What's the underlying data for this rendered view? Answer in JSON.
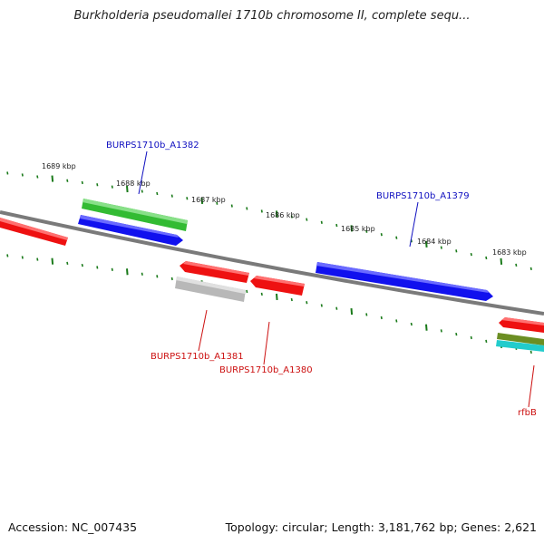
{
  "title": "Burkholderia pseudomallei 1710b chromosome II, complete sequ...",
  "footer": {
    "accession": "Accession: NC_007435",
    "topology": "Topology: circular; Length: 3,181,762 bp; Genes: 2,621"
  },
  "ticks": [
    "1689 kbp",
    "1688 kbp",
    "1687 kbp",
    "1686 kbp",
    "1685 kbp",
    "1684 kbp",
    "1683 kbp"
  ],
  "gene_labels": {
    "a1382": "BURPS1710b_A1382",
    "a1379": "BURPS1710b_A1379",
    "a1381": "BURPS1710b_A1381",
    "a1380": "BURPS1710b_A1380",
    "rfbB": "rfbB"
  },
  "colors": {
    "forward_label": "#1010c0",
    "reverse_label": "#cc1010",
    "backbone": "#808080",
    "tick_mark": "#1a7a1a",
    "red": "#ee1111",
    "blue": "#1111ee",
    "green": "#33bb33",
    "grey": "#b8b8b8",
    "olive": "#6b8e23",
    "cyan": "#22cccc"
  }
}
